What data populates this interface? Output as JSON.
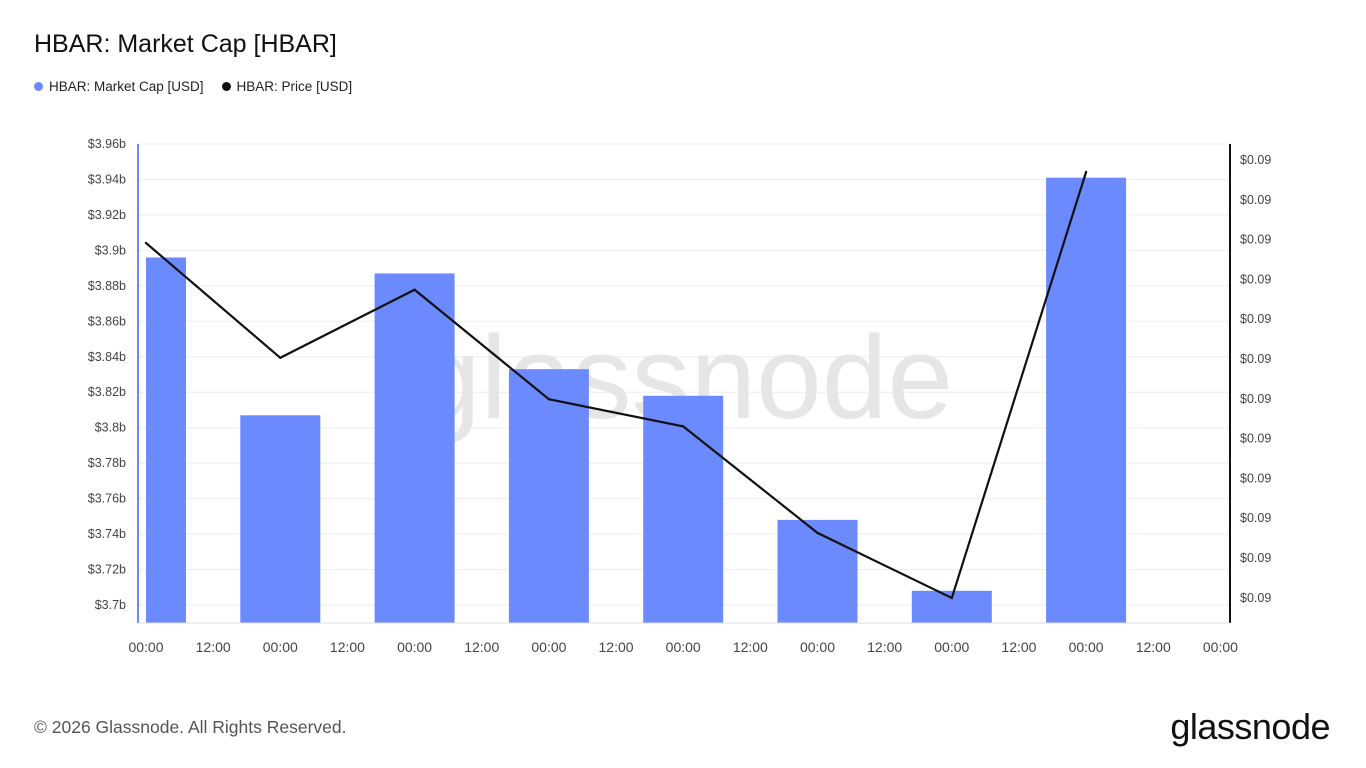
{
  "title": "HBAR: Market Cap [HBAR]",
  "legend": [
    {
      "label": "HBAR: Market Cap [USD]",
      "color": "#6b8afd"
    },
    {
      "label": "HBAR: Price [USD]",
      "color": "#111111"
    }
  ],
  "watermark": "glassnode",
  "footer": {
    "copyright": "© 2026 Glassnode. All Rights Reserved.",
    "logo": "glassnode"
  },
  "chart_data": {
    "type": "bar",
    "x_ticks": [
      "00:00",
      "12:00",
      "00:00",
      "12:00",
      "00:00",
      "12:00",
      "00:00",
      "12:00",
      "00:00",
      "12:00",
      "00:00",
      "12:00",
      "00:00",
      "12:00",
      "00:00",
      "12:00",
      "00:00"
    ],
    "left_axis": {
      "ticks": [
        "$3.96b",
        "$3.94b",
        "$3.92b",
        "$3.9b",
        "$3.88b",
        "$3.86b",
        "$3.84b",
        "$3.82b",
        "$3.8b",
        "$3.78b",
        "$3.76b",
        "$3.74b",
        "$3.72b",
        "$3.7b"
      ],
      "ylim": [
        3.69,
        3.96
      ]
    },
    "right_axis": {
      "ticks": [
        "$0.09",
        "$0.09",
        "$0.09",
        "$0.09",
        "$0.09",
        "$0.09",
        "$0.09",
        "$0.09",
        "$0.09",
        "$0.09",
        "$0.09",
        "$0.09"
      ]
    },
    "series": [
      {
        "name": "HBAR: Market Cap [USD]",
        "type": "bar",
        "color": "#6b8afd",
        "x": [
          0,
          1,
          2,
          3,
          4,
          5,
          6,
          7
        ],
        "values": [
          3.896,
          3.807,
          3.887,
          3.833,
          3.818,
          3.748,
          3.708,
          3.941
        ]
      },
      {
        "name": "HBAR: Price [USD]",
        "type": "line",
        "color": "#111111",
        "x": [
          0,
          1,
          2,
          3,
          4,
          5,
          6,
          7
        ],
        "values": [
          3.89,
          3.696,
          3.811,
          3.626,
          3.58,
          3.4,
          3.29,
          4.01
        ]
      }
    ],
    "grid": true,
    "legend_position": "top-left"
  }
}
